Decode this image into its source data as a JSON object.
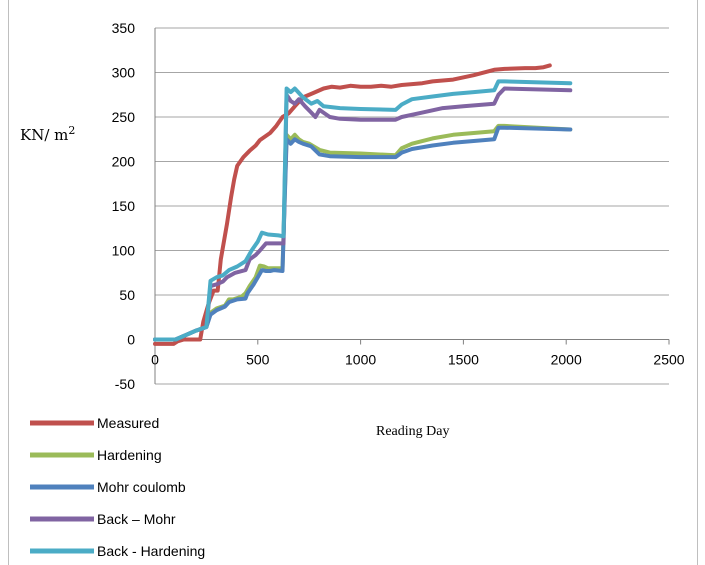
{
  "chart_data": {
    "type": "line",
    "xlabel": "Reading Day",
    "ylabel": "KN/ m",
    "ylabel_superscript": "2",
    "xlim": [
      0,
      2500
    ],
    "ylim": [
      -50,
      350
    ],
    "xticks": [
      0,
      500,
      1000,
      1500,
      2000,
      2500
    ],
    "yticks": [
      -50,
      0,
      50,
      100,
      150,
      200,
      250,
      300,
      350
    ],
    "grid": "horizontal",
    "legend_position": "bottom-left",
    "series": [
      {
        "name": "Measured",
        "color": "#c0504d",
        "points": [
          [
            0,
            -5
          ],
          [
            90,
            -5
          ],
          [
            110,
            -2
          ],
          [
            140,
            0
          ],
          [
            165,
            0
          ],
          [
            200,
            0
          ],
          [
            220,
            0
          ],
          [
            235,
            20
          ],
          [
            260,
            40
          ],
          [
            285,
            55
          ],
          [
            305,
            55
          ],
          [
            320,
            90
          ],
          [
            350,
            130
          ],
          [
            370,
            160
          ],
          [
            385,
            180
          ],
          [
            400,
            195
          ],
          [
            430,
            205
          ],
          [
            460,
            212
          ],
          [
            490,
            218
          ],
          [
            510,
            224
          ],
          [
            560,
            232
          ],
          [
            590,
            240
          ],
          [
            620,
            250
          ],
          [
            650,
            254
          ],
          [
            680,
            262
          ],
          [
            720,
            272
          ],
          [
            770,
            277
          ],
          [
            820,
            282
          ],
          [
            860,
            284
          ],
          [
            900,
            283
          ],
          [
            950,
            285
          ],
          [
            1000,
            284
          ],
          [
            1050,
            284
          ],
          [
            1100,
            285
          ],
          [
            1150,
            284
          ],
          [
            1200,
            286
          ],
          [
            1300,
            288
          ],
          [
            1350,
            290
          ],
          [
            1450,
            292
          ],
          [
            1550,
            297
          ],
          [
            1650,
            303
          ],
          [
            1700,
            304
          ],
          [
            1800,
            305
          ],
          [
            1850,
            305
          ],
          [
            1890,
            306
          ],
          [
            1920,
            308
          ]
        ]
      },
      {
        "name": "Hardening",
        "color": "#9bbb59",
        "points": [
          [
            0,
            0
          ],
          [
            100,
            0
          ],
          [
            150,
            5
          ],
          [
            200,
            10
          ],
          [
            250,
            14
          ],
          [
            270,
            30
          ],
          [
            300,
            35
          ],
          [
            340,
            38
          ],
          [
            360,
            45
          ],
          [
            380,
            45
          ],
          [
            420,
            48
          ],
          [
            440,
            52
          ],
          [
            460,
            60
          ],
          [
            490,
            70
          ],
          [
            510,
            83
          ],
          [
            530,
            82
          ],
          [
            550,
            80
          ],
          [
            580,
            80
          ],
          [
            620,
            80
          ],
          [
            640,
            230
          ],
          [
            660,
            225
          ],
          [
            680,
            230
          ],
          [
            700,
            225
          ],
          [
            720,
            222
          ],
          [
            750,
            220
          ],
          [
            800,
            213
          ],
          [
            850,
            210
          ],
          [
            1000,
            209
          ],
          [
            1170,
            207
          ],
          [
            1200,
            215
          ],
          [
            1250,
            220
          ],
          [
            1350,
            226
          ],
          [
            1450,
            230
          ],
          [
            1550,
            232
          ],
          [
            1650,
            234
          ],
          [
            1670,
            240
          ],
          [
            1700,
            240
          ],
          [
            2020,
            236
          ]
        ]
      },
      {
        "name": "Mohr coulomb",
        "color": "#4f81bd",
        "points": [
          [
            0,
            0
          ],
          [
            100,
            0
          ],
          [
            150,
            5
          ],
          [
            200,
            10
          ],
          [
            250,
            14
          ],
          [
            270,
            28
          ],
          [
            300,
            33
          ],
          [
            340,
            37
          ],
          [
            360,
            42
          ],
          [
            400,
            45
          ],
          [
            440,
            46
          ],
          [
            450,
            52
          ],
          [
            480,
            62
          ],
          [
            500,
            70
          ],
          [
            520,
            78
          ],
          [
            540,
            77
          ],
          [
            560,
            77
          ],
          [
            580,
            78
          ],
          [
            620,
            77
          ],
          [
            640,
            225
          ],
          [
            660,
            220
          ],
          [
            680,
            225
          ],
          [
            700,
            222
          ],
          [
            720,
            220
          ],
          [
            760,
            217
          ],
          [
            800,
            208
          ],
          [
            850,
            206
          ],
          [
            1000,
            205
          ],
          [
            1170,
            205
          ],
          [
            1200,
            210
          ],
          [
            1250,
            214
          ],
          [
            1350,
            218
          ],
          [
            1450,
            221
          ],
          [
            1550,
            223
          ],
          [
            1650,
            225
          ],
          [
            1670,
            238
          ],
          [
            1700,
            238
          ],
          [
            2020,
            236
          ]
        ]
      },
      {
        "name": "Back – Mohr",
        "color": "#8064a2",
        "points": [
          [
            0,
            0
          ],
          [
            100,
            0
          ],
          [
            150,
            5
          ],
          [
            200,
            10
          ],
          [
            250,
            14
          ],
          [
            270,
            60
          ],
          [
            300,
            62
          ],
          [
            330,
            65
          ],
          [
            350,
            70
          ],
          [
            390,
            75
          ],
          [
            440,
            78
          ],
          [
            460,
            90
          ],
          [
            490,
            95
          ],
          [
            510,
            100
          ],
          [
            540,
            108
          ],
          [
            600,
            108
          ],
          [
            625,
            108
          ],
          [
            640,
            275
          ],
          [
            660,
            268
          ],
          [
            680,
            265
          ],
          [
            700,
            270
          ],
          [
            730,
            262
          ],
          [
            760,
            255
          ],
          [
            780,
            250
          ],
          [
            800,
            258
          ],
          [
            850,
            250
          ],
          [
            900,
            248
          ],
          [
            1000,
            247
          ],
          [
            1170,
            247
          ],
          [
            1200,
            250
          ],
          [
            1300,
            255
          ],
          [
            1400,
            260
          ],
          [
            1500,
            262
          ],
          [
            1650,
            265
          ],
          [
            1670,
            275
          ],
          [
            1700,
            282
          ],
          [
            2020,
            280
          ]
        ]
      },
      {
        "name": "Back - Hardening",
        "color": "#4bacc6",
        "points": [
          [
            0,
            0
          ],
          [
            100,
            0
          ],
          [
            150,
            5
          ],
          [
            200,
            10
          ],
          [
            250,
            14
          ],
          [
            270,
            66
          ],
          [
            300,
            70
          ],
          [
            330,
            72
          ],
          [
            360,
            78
          ],
          [
            400,
            82
          ],
          [
            440,
            88
          ],
          [
            470,
            100
          ],
          [
            500,
            110
          ],
          [
            520,
            120
          ],
          [
            550,
            118
          ],
          [
            600,
            117
          ],
          [
            625,
            116
          ],
          [
            640,
            282
          ],
          [
            660,
            278
          ],
          [
            680,
            282
          ],
          [
            720,
            272
          ],
          [
            760,
            265
          ],
          [
            790,
            268
          ],
          [
            820,
            262
          ],
          [
            900,
            260
          ],
          [
            1000,
            259
          ],
          [
            1170,
            258
          ],
          [
            1200,
            264
          ],
          [
            1250,
            270
          ],
          [
            1350,
            273
          ],
          [
            1450,
            276
          ],
          [
            1550,
            278
          ],
          [
            1650,
            280
          ],
          [
            1670,
            290
          ],
          [
            1700,
            290
          ],
          [
            2020,
            288
          ]
        ]
      }
    ]
  }
}
